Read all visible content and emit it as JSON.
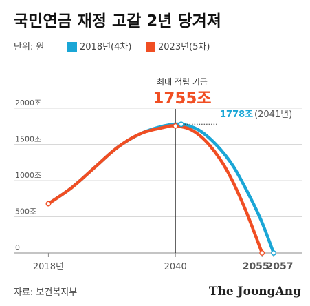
{
  "title": "국민연금 재정 고갈 2년 당겨져",
  "unit_label": "단위: 원",
  "legend": [
    {
      "label": "2018년(4차)",
      "color": "#1aa6d6"
    },
    {
      "label": "2023년(5차)",
      "color": "#f04e23"
    }
  ],
  "annotations": {
    "peak_caption": "최대 적립 기금",
    "peak_value": "1755조",
    "peak_2018_value": "1778조",
    "peak_2018_year": "(2041년)"
  },
  "source": "자료: 보건복지부",
  "brand": "The JoongAng",
  "chart_data": {
    "type": "line",
    "y_ticks": [
      {
        "value": 0,
        "label": "0"
      },
      {
        "value": 500,
        "label": "500조"
      },
      {
        "value": 1000,
        "label": "1000조"
      },
      {
        "value": 1500,
        "label": "1500조"
      },
      {
        "value": 2000,
        "label": "2000조"
      }
    ],
    "x_ticks": [
      {
        "value": 2018,
        "label": "2018년"
      },
      {
        "value": 2040,
        "label": "2040"
      },
      {
        "value": 2055,
        "label": "2055",
        "color": "#f04e23"
      },
      {
        "value": 2057,
        "label": "2057",
        "color": "#1aa6d6"
      }
    ],
    "xlim": [
      2012,
      2062
    ],
    "ylim": [
      0,
      2000
    ],
    "series": [
      {
        "name": "2018년(4차)",
        "color": "#1aa6d6",
        "x": [
          2018,
          2022,
          2026,
          2030,
          2034,
          2038,
          2041,
          2044,
          2047,
          2050,
          2053,
          2055,
          2057
        ],
        "y": [
          680,
          900,
          1180,
          1460,
          1650,
          1755,
          1778,
          1700,
          1500,
          1200,
          760,
          420,
          0
        ]
      },
      {
        "name": "2023년(5차)",
        "color": "#f04e23",
        "x": [
          2018,
          2022,
          2026,
          2030,
          2034,
          2038,
          2040,
          2043,
          2046,
          2049,
          2052,
          2055
        ],
        "y": [
          680,
          900,
          1180,
          1460,
          1650,
          1735,
          1755,
          1690,
          1480,
          1130,
          620,
          0
        ]
      }
    ],
    "markers": [
      {
        "series": 0,
        "x": 2041,
        "y": 1778
      },
      {
        "series": 1,
        "x": 2040,
        "y": 1755
      },
      {
        "series": 1,
        "x": 2018,
        "y": 680
      },
      {
        "series": 0,
        "x": 2057,
        "y": 0
      },
      {
        "series": 1,
        "x": 2055,
        "y": 0
      }
    ]
  }
}
